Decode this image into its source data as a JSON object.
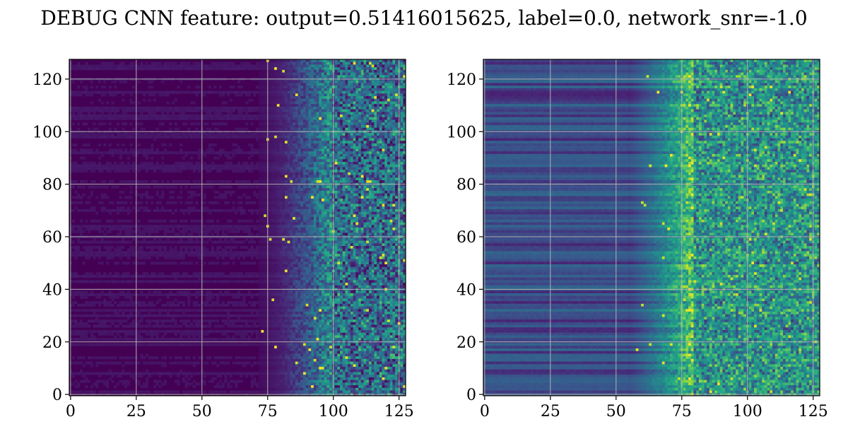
{
  "figure": {
    "title": "DEBUG CNN feature: output=0.51416015625, label=0.0, network_snr=-1.0"
  },
  "chart_data": [
    {
      "type": "heatmap",
      "rows": 128,
      "cols": 128,
      "colormap": "viridis",
      "grid": true,
      "x_ticks": [
        0,
        25,
        50,
        75,
        100,
        125
      ],
      "y_ticks": [
        0,
        20,
        40,
        60,
        80,
        100,
        120
      ],
      "x_tick_labels": [
        "0",
        "25",
        "50",
        "75",
        "100",
        "125"
      ],
      "y_tick_labels": [
        "0",
        "20",
        "40",
        "60",
        "80",
        "100",
        "120"
      ],
      "xlim": [
        -0.5,
        127.5
      ],
      "ylim": [
        127.5,
        -0.5
      ],
      "pattern": {
        "row_band_strength": 0.05,
        "dark_until_col": 72,
        "ramp_end_col": 100,
        "base_level": 0.04,
        "mid_level": 0.18,
        "noise_level": 0.55,
        "hot_prob": 0.012
      }
    },
    {
      "type": "heatmap",
      "rows": 128,
      "cols": 128,
      "colormap": "viridis",
      "grid": true,
      "x_ticks": [
        0,
        25,
        50,
        75,
        100,
        125
      ],
      "y_ticks": [
        0,
        20,
        40,
        60,
        80,
        100,
        120
      ],
      "x_tick_labels": [
        "0",
        "25",
        "50",
        "75",
        "100",
        "125"
      ],
      "y_tick_labels": [
        "0",
        "20",
        "40",
        "60",
        "80",
        "100",
        "120"
      ],
      "xlim": [
        -0.5,
        127.5
      ],
      "ylim": [
        127.5,
        -0.5
      ],
      "pattern": {
        "row_band_strength": 0.22,
        "dark_until_col": 55,
        "ramp_end_col": 80,
        "base_level": 0.22,
        "mid_level": 0.3,
        "noise_level": 0.5,
        "hot_prob": 0.008
      }
    }
  ]
}
